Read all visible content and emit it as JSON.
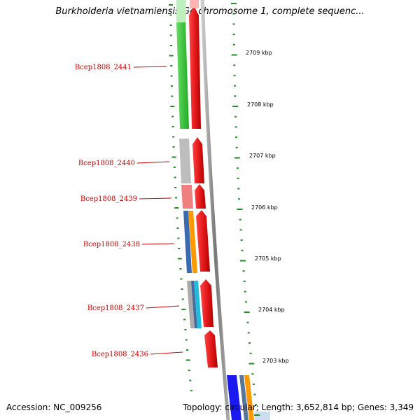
{
  "title": "Burkholderia vietnamiensis G4 chromosome 1, complete sequenc...",
  "accession": "Accession: NC_009256",
  "topology": "Topology: circular; Length: 3,652,814 bp; Genes: 3,349",
  "ticks": [
    "2709 kbp",
    "2708 kbp",
    "2707 kbp",
    "2706 kbp",
    "2705 kbp",
    "2704 kbp",
    "2703 kbp"
  ],
  "genes": [
    "Bcep1808_2441",
    "Bcep1808_2440",
    "Bcep1808_2439",
    "Bcep1808_2438",
    "Bcep1808_2437",
    "Bcep1808_2436"
  ],
  "colors": {
    "gene_red": "#e41a1c",
    "cog_green": "#33cc33",
    "cog_gray": "#bbbbbb",
    "cog_pink": "#f08080",
    "cog_blue": "#3366cc",
    "cog_orange": "#ff9900",
    "cog_cyan": "#22bbdd",
    "backbone": "#888888",
    "tick_green": "#228b22",
    "label_red": "#cc0000"
  }
}
